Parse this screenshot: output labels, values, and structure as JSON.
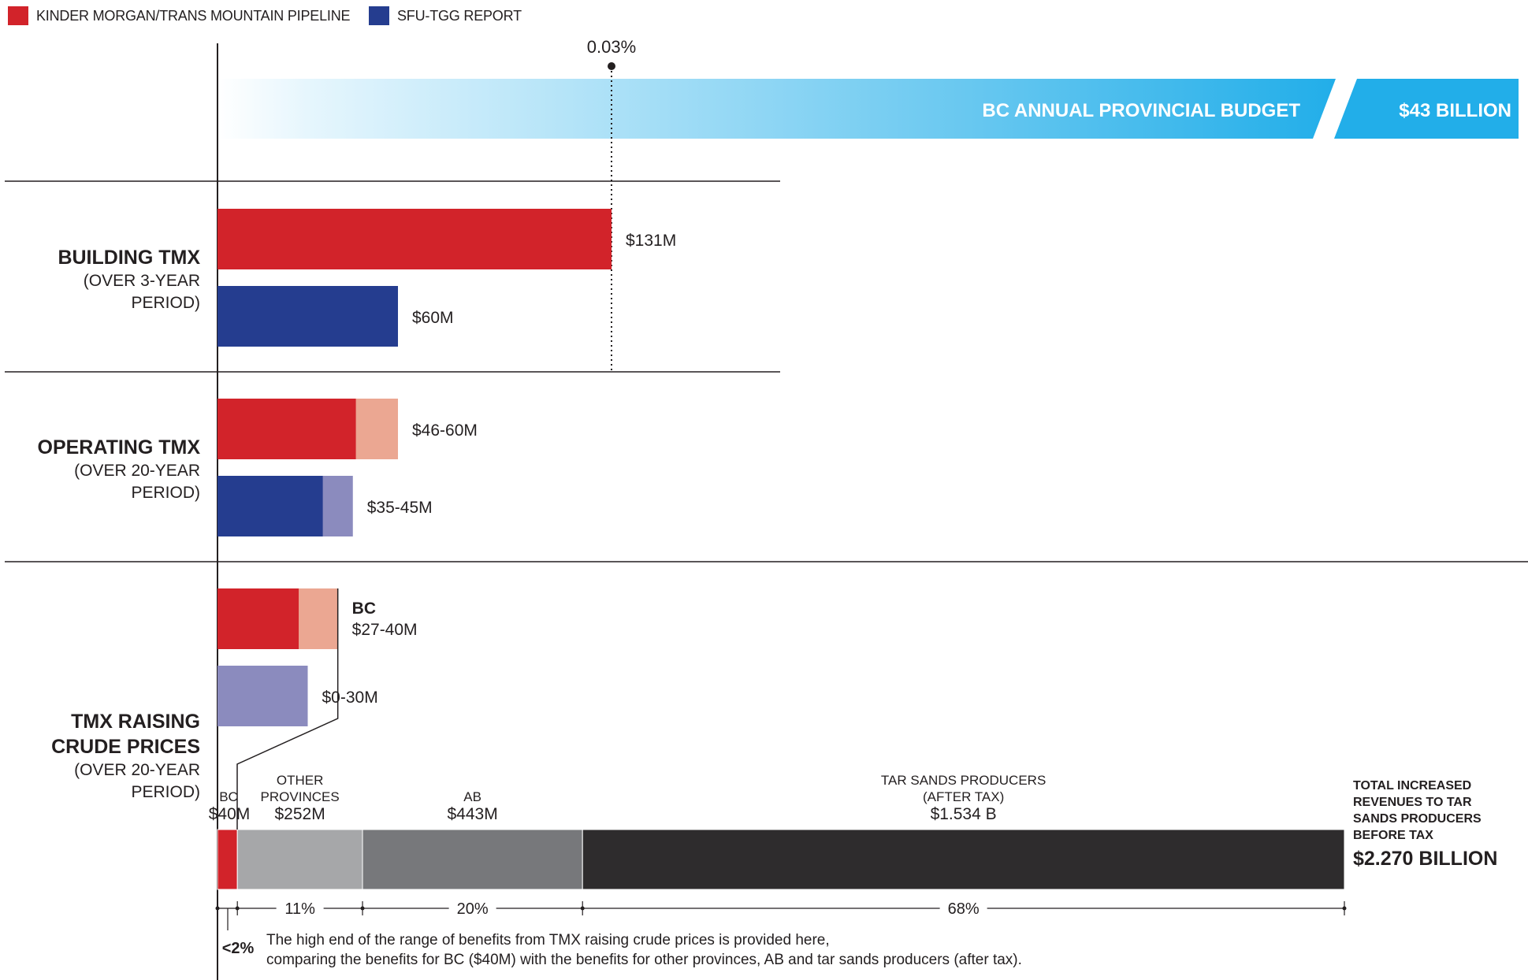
{
  "legend": [
    {
      "label": "KINDER MORGAN/TRANS MOUNTAIN PIPELINE",
      "color": "#d2232a"
    },
    {
      "label": "SFU-TGG REPORT",
      "color": "#253d8f"
    }
  ],
  "colors": {
    "km": "#d2232a",
    "km_range": "#eba792",
    "sfu": "#253d8f",
    "sfu_range": "#8b8bbe",
    "budget_light": "#e6f6fd",
    "budget_dark": "#22aee9",
    "bc_slice": "#d2232a",
    "other_provinces": "#a6a7a9",
    "ab": "#77787b",
    "tar_sands": "#2e2c2d",
    "text": "#231f20"
  },
  "chart_data": [
    {
      "type": "bar",
      "title": "BC ANNUAL PROVINCIAL BUDGET",
      "value_label": "$43 BILLION",
      "marker_label": "0.03%",
      "unit": "millions CAD"
    },
    {
      "type": "bar",
      "unit": "millions CAD",
      "groups": [
        {
          "title": "BUILDING TMX",
          "subtitle": [
            "(OVER 3-YEAR",
            "PERIOD)"
          ],
          "bars": [
            {
              "series": "KINDER MORGAN/TRANS MOUNTAIN PIPELINE",
              "low": 131,
              "high": 131,
              "label": "$131M"
            },
            {
              "series": "SFU-TGG REPORT",
              "low": 60,
              "high": 60,
              "label": "$60M"
            }
          ]
        },
        {
          "title": "OPERATING TMX",
          "subtitle": [
            "(OVER 20-YEAR",
            "PERIOD)"
          ],
          "bars": [
            {
              "series": "KINDER MORGAN/TRANS MOUNTAIN PIPELINE",
              "low": 46,
              "high": 60,
              "label": "$46-60M"
            },
            {
              "series": "SFU-TGG REPORT",
              "low": 35,
              "high": 45,
              "label": "$35-45M"
            }
          ]
        },
        {
          "title": [
            "TMX RAISING",
            "CRUDE PRICES"
          ],
          "subtitle": [
            "(OVER 20-YEAR",
            "PERIOD)"
          ],
          "bars": [
            {
              "series": "KINDER MORGAN/TRANS MOUNTAIN PIPELINE",
              "low": 27,
              "high": 40,
              "label": "$27-40M",
              "label_title": "BC"
            },
            {
              "series": "SFU-TGG REPORT",
              "low": 0,
              "high": 30,
              "label": "$0-30M"
            }
          ]
        }
      ]
    },
    {
      "type": "bar",
      "stacked": true,
      "unit": "millions CAD",
      "segments": [
        {
          "name": "BC",
          "label_lines": [
            "BC"
          ],
          "amount": "$40M",
          "value": 40,
          "percent": "<2%"
        },
        {
          "name": "OTHER PROVINCES",
          "label_lines": [
            "OTHER",
            "PROVINCES"
          ],
          "amount": "$252M",
          "value": 252,
          "percent": "11%"
        },
        {
          "name": "AB",
          "label_lines": [
            "AB"
          ],
          "amount": "$443M",
          "value": 443,
          "percent": "20%"
        },
        {
          "name": "TAR SANDS PRODUCERS (AFTER TAX)",
          "label_lines": [
            "TAR SANDS PRODUCERS",
            "(AFTER TAX)"
          ],
          "amount": "$1.534 B",
          "value": 1534,
          "percent": "68%"
        }
      ],
      "total_lines": [
        "TOTAL INCREASED",
        "REVENUES TO TAR",
        "SANDS PRODUCERS",
        "BEFORE TAX"
      ],
      "total_value": "$2.270 BILLION",
      "footnote": [
        "The high end of the range of benefits from TMX raising crude prices is provided here,",
        "comparing the benefits for BC ($40M) with the benefits for other provinces, AB and tar sands producers (after tax)."
      ]
    }
  ]
}
